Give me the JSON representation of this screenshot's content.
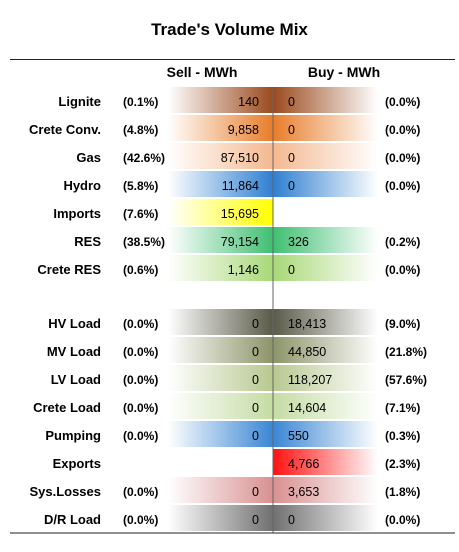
{
  "title": "Trade's Volume Mix",
  "headers": {
    "sell": "Sell - MWh",
    "buy": "Buy - MWh"
  },
  "chart_data": {
    "type": "table",
    "columns": [
      "Sell - MWh",
      "Buy - MWh"
    ],
    "groups": [
      {
        "rows": [
          {
            "label": "Lignite",
            "sell_pct": "(0.1%)",
            "sell": 140,
            "buy": 0,
            "buy_pct": "(0.0%)",
            "color": "#9a4a1e"
          },
          {
            "label": "Crete Conv.",
            "sell_pct": "(4.8%)",
            "sell": 9858,
            "buy": 0,
            "buy_pct": "(0.0%)",
            "color": "#e87d2a"
          },
          {
            "label": "Gas",
            "sell_pct": "(42.6%)",
            "sell": 87510,
            "buy": 0,
            "buy_pct": "(0.0%)",
            "color": "#f4b890"
          },
          {
            "label": "Hydro",
            "sell_pct": "(5.8%)",
            "sell": 11864,
            "buy": 0,
            "buy_pct": "(0.0%)",
            "color": "#2f7fd0"
          },
          {
            "label": "Imports",
            "sell_pct": "(7.6%)",
            "sell": 15695,
            "buy": null,
            "buy_pct": "",
            "color": "#ffff00"
          },
          {
            "label": "RES",
            "sell_pct": "(38.5%)",
            "sell": 79154,
            "buy": 326,
            "buy_pct": "(0.2%)",
            "color": "#3fbf72"
          },
          {
            "label": "Crete RES",
            "sell_pct": "(0.6%)",
            "sell": 1146,
            "buy": 0,
            "buy_pct": "(0.0%)",
            "color": "#a8d878"
          }
        ]
      },
      {
        "rows": [
          {
            "label": "HV Load",
            "sell_pct": "(0.0%)",
            "sell": 0,
            "buy": 18413,
            "buy_pct": "(9.0%)",
            "color": "#5a5a48"
          },
          {
            "label": "MV Load",
            "sell_pct": "(0.0%)",
            "sell": 0,
            "buy": 44850,
            "buy_pct": "(21.8%)",
            "color": "#8c9468"
          },
          {
            "label": "LV Load",
            "sell_pct": "(0.0%)",
            "sell": 0,
            "buy": 118207,
            "buy_pct": "(57.6%)",
            "color": "#b8c890"
          },
          {
            "label": "Crete Load",
            "sell_pct": "(0.0%)",
            "sell": 0,
            "buy": 14604,
            "buy_pct": "(7.1%)",
            "color": "#c4dca4"
          },
          {
            "label": "Pumping",
            "sell_pct": "(0.0%)",
            "sell": 0,
            "buy": 550,
            "buy_pct": "(0.3%)",
            "color": "#3a86d4"
          },
          {
            "label": "Exports",
            "sell_pct": "",
            "sell": null,
            "buy": 4766,
            "buy_pct": "(2.3%)",
            "color": "#ff1010"
          },
          {
            "label": "Sys.Losses",
            "sell_pct": "(0.0%)",
            "sell": 0,
            "buy": 3653,
            "buy_pct": "(1.8%)",
            "color": "#d89090"
          },
          {
            "label": "D/R Load",
            "sell_pct": "(0.0%)",
            "sell": 0,
            "buy": 0,
            "buy_pct": "(0.0%)",
            "color": "#707070"
          }
        ]
      }
    ]
  }
}
